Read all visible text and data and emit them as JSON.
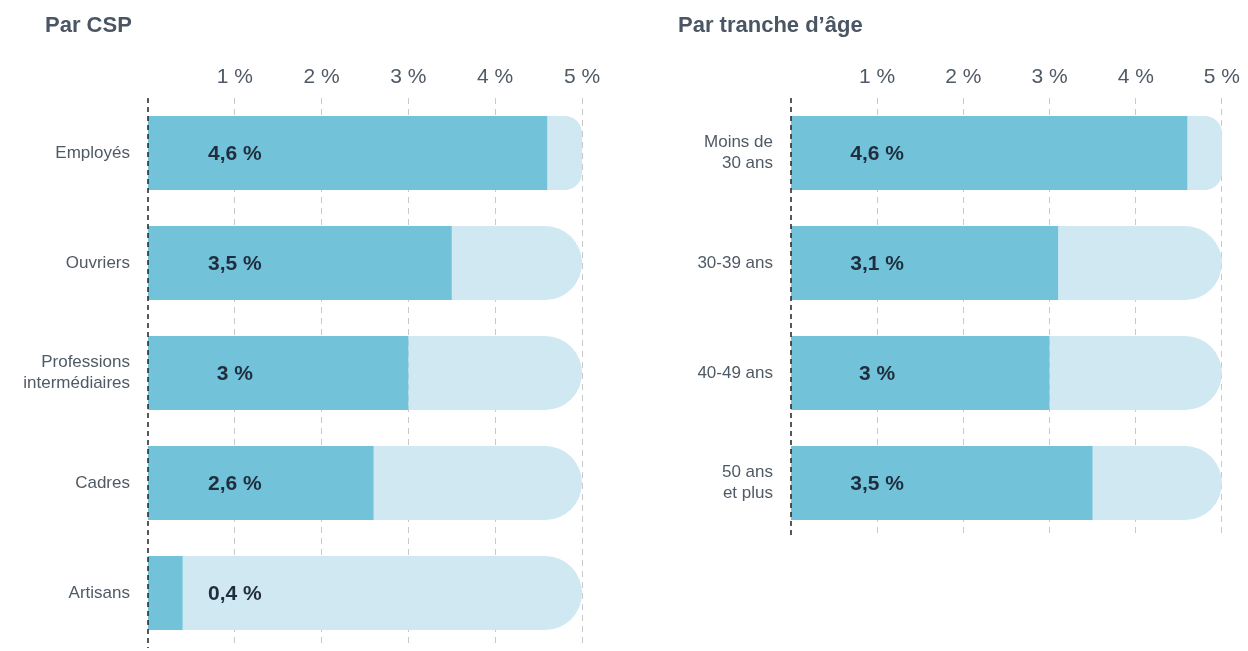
{
  "chart_data": [
    {
      "type": "bar",
      "title": "Par CSP",
      "orientation": "horizontal",
      "stacked": true,
      "categories": [
        "Employés",
        "Ouvriers",
        "Professions intermédiaires",
        "Cadres",
        "Artisans"
      ],
      "series": [
        {
          "color": "#72c3da",
          "values": [
            4.6,
            3.5,
            3,
            2.6,
            0.4
          ],
          "value_labels": [
            "4,6 %",
            "3,5 %",
            "3 %",
            "2,6 %",
            "0,4 %"
          ]
        },
        {
          "color": "#d0e8f1",
          "values": [
            0.4,
            1.5,
            2,
            2.4,
            4.6
          ]
        }
      ],
      "xlim": [
        0,
        5
      ],
      "xticks": [
        {
          "value": 1,
          "label": "1 %"
        },
        {
          "value": 2,
          "label": "2 %"
        },
        {
          "value": 3,
          "label": "3 %"
        },
        {
          "value": 4,
          "label": "4 %"
        },
        {
          "value": 5,
          "label": "5 %"
        }
      ],
      "grid": "x",
      "legend": false
    },
    {
      "type": "bar",
      "title": "Par tranche d’âge",
      "orientation": "horizontal",
      "stacked": true,
      "categories": [
        "Moins de 30 ans",
        "30-39 ans",
        "40-49 ans",
        "50 ans et plus"
      ],
      "series": [
        {
          "color": "#72c3da",
          "values": [
            4.6,
            3.1,
            3,
            3.5
          ],
          "value_labels": [
            "4,6 %",
            "3,1 %",
            "3 %",
            "3,5 %"
          ]
        },
        {
          "color": "#d0e8f1",
          "values": [
            0.4,
            1.9,
            2,
            1.5
          ]
        }
      ],
      "xlim": [
        0,
        5
      ],
      "xticks": [
        {
          "value": 1,
          "label": "1 %"
        },
        {
          "value": 2,
          "label": "2 %"
        },
        {
          "value": 3,
          "label": "3 %"
        },
        {
          "value": 4,
          "label": "4 %"
        },
        {
          "value": 5,
          "label": "5 %"
        }
      ],
      "grid": "x",
      "legend": false
    }
  ]
}
